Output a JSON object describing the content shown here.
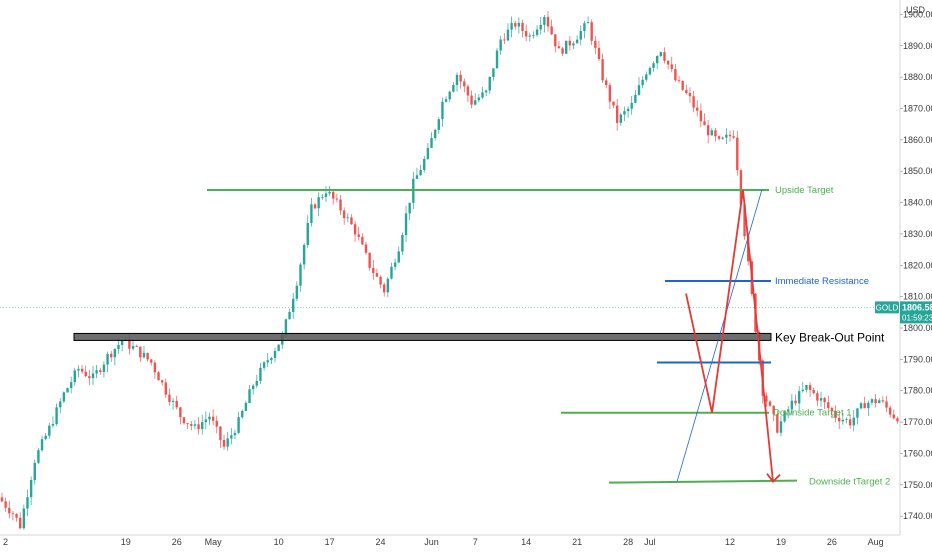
{
  "chart_data": {
    "type": "candlestick",
    "symbol": "GOLD",
    "currency": "USD",
    "last_price": "1806.58",
    "countdown": "01:59:23",
    "y_range": [
      1734,
      1903
    ],
    "y_ticks": [
      "1740.00",
      "1750.00",
      "1760.00",
      "1770.00",
      "1780.00",
      "1790.00",
      "1800.00",
      "1810.00",
      "1820.00",
      "1830.00",
      "1840.00",
      "1850.00",
      "1860.00",
      "1870.00",
      "1880.00",
      "1890.00",
      "1900.00"
    ],
    "x_ticks": [
      {
        "label": "2",
        "day": 0
      },
      {
        "label": "19",
        "day": 17
      },
      {
        "label": "26",
        "day": 24
      },
      {
        "label": "May",
        "day": 29
      },
      {
        "label": "10",
        "day": 38
      },
      {
        "label": "17",
        "day": 45
      },
      {
        "label": "24",
        "day": 52
      },
      {
        "label": "Jun",
        "day": 59
      },
      {
        "label": "7",
        "day": 65
      },
      {
        "label": "14",
        "day": 72
      },
      {
        "label": "21",
        "day": 79
      },
      {
        "label": "28",
        "day": 86
      },
      {
        "label": "Jul",
        "day": 89
      },
      {
        "label": "12",
        "day": 100
      },
      {
        "label": "19",
        "day": 107
      },
      {
        "label": "26",
        "day": 114
      },
      {
        "label": "Aug",
        "day": 120
      }
    ],
    "price_path": [
      [
        0,
        1746
      ],
      [
        2,
        1741
      ],
      [
        3,
        1737
      ],
      [
        5,
        1758
      ],
      [
        7,
        1768
      ],
      [
        9,
        1779
      ],
      [
        11,
        1787
      ],
      [
        13,
        1784
      ],
      [
        15,
        1791
      ],
      [
        17,
        1796
      ],
      [
        19,
        1793
      ],
      [
        21,
        1789
      ],
      [
        23,
        1780
      ],
      [
        25,
        1772
      ],
      [
        27,
        1768
      ],
      [
        29,
        1772
      ],
      [
        31,
        1762
      ],
      [
        33,
        1770
      ],
      [
        35,
        1782
      ],
      [
        37,
        1790
      ],
      [
        39,
        1797
      ],
      [
        41,
        1815
      ],
      [
        43,
        1838
      ],
      [
        45,
        1844
      ],
      [
        47,
        1838
      ],
      [
        49,
        1831
      ],
      [
        51,
        1820
      ],
      [
        53,
        1812
      ],
      [
        55,
        1826
      ],
      [
        57,
        1846
      ],
      [
        59,
        1856
      ],
      [
        61,
        1872
      ],
      [
        63,
        1881
      ],
      [
        65,
        1872
      ],
      [
        67,
        1875
      ],
      [
        69,
        1892
      ],
      [
        71,
        1897
      ],
      [
        73,
        1893
      ],
      [
        75,
        1900
      ],
      [
        77,
        1888
      ],
      [
        79,
        1892
      ],
      [
        81,
        1897
      ],
      [
        83,
        1880
      ],
      [
        85,
        1866
      ],
      [
        87,
        1871
      ],
      [
        89,
        1882
      ],
      [
        91,
        1889
      ],
      [
        93,
        1879
      ],
      [
        95,
        1873
      ],
      [
        97,
        1864
      ],
      [
        99,
        1859
      ],
      [
        101,
        1862
      ],
      [
        103,
        1820
      ],
      [
        105,
        1780
      ],
      [
        107,
        1768
      ],
      [
        109,
        1776
      ],
      [
        111,
        1781
      ],
      [
        113,
        1777
      ],
      [
        115,
        1772
      ],
      [
        117,
        1770
      ],
      [
        119,
        1776
      ],
      [
        121,
        1777
      ],
      [
        123,
        1772
      ],
      [
        125,
        1771
      ],
      [
        127,
        1756
      ],
      [
        129,
        1762
      ],
      [
        131,
        1774
      ],
      [
        133,
        1783
      ],
      [
        135,
        1789
      ],
      [
        137,
        1797
      ],
      [
        139,
        1804
      ],
      [
        141,
        1806.58
      ]
    ],
    "lines": [
      {
        "label": "Upside Target",
        "value": 1844,
        "color": "#4caf50"
      },
      {
        "label": "Immediate Resistance",
        "value": 1815,
        "color": "#1e63d6"
      },
      {
        "label": "Key Break-Out Point",
        "value": 1797,
        "color": "#000000"
      },
      {
        "label": "Downside Target 1",
        "value": 1773,
        "color": "#4caf50"
      },
      {
        "label": "Downside tTarget 2",
        "value": 1751,
        "color": "#4caf50"
      }
    ],
    "support_line_value": 1789,
    "projection_path": [
      [
        95,
        1811
      ],
      [
        100,
        1773
      ],
      [
        104,
        1844
      ],
      [
        108,
        1751
      ]
    ],
    "trendline": {
      "from": [
        93,
        1751
      ],
      "to": [
        103,
        1844
      ]
    },
    "colors": {
      "up": "#26a69a",
      "down": "#ef5350",
      "green": "#4caf50",
      "blue": "#1e63d6",
      "red": "#e53935",
      "price_tag": "#26a69a"
    }
  }
}
